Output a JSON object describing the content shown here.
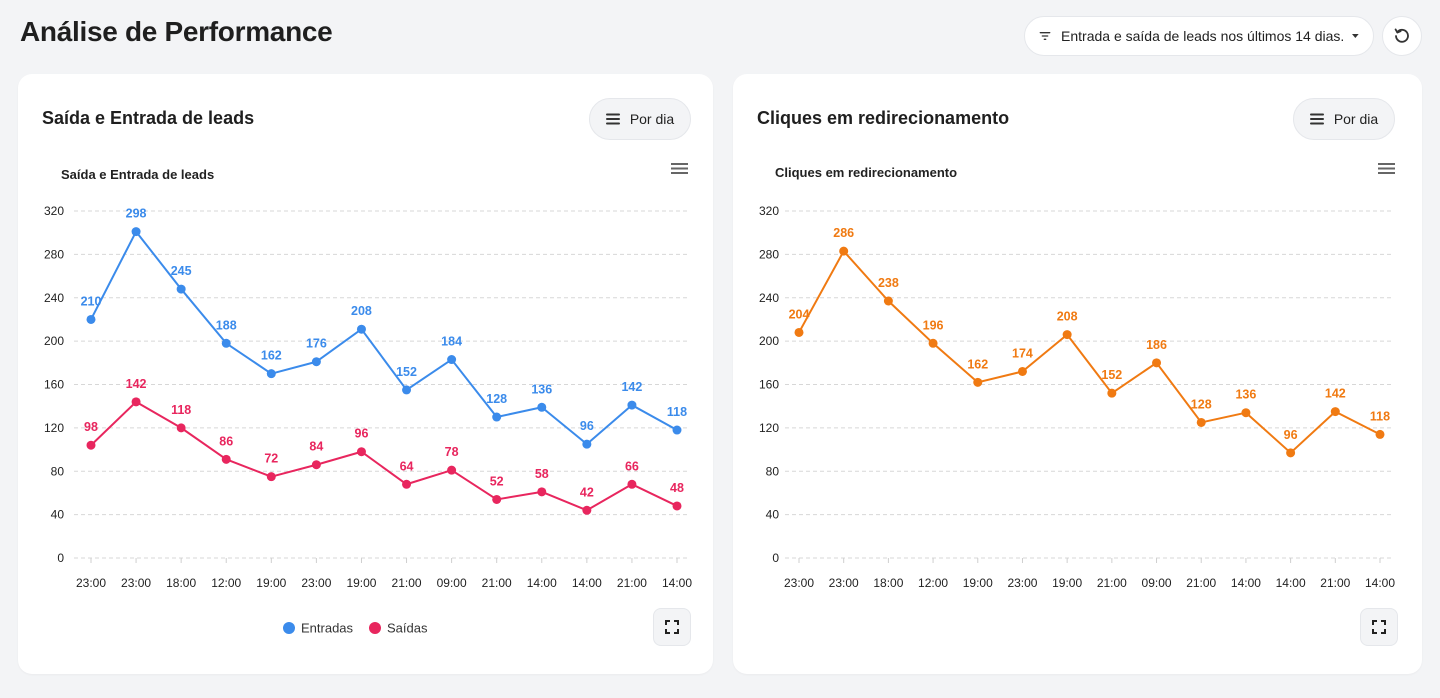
{
  "header": {
    "title": "Análise de Performance",
    "filter_label": "Entrada e saída de leads nos últimos 14 dias."
  },
  "cards": [
    {
      "title": "Saída e Entrada de leads",
      "period_button": "Por dia"
    },
    {
      "title": "Cliques em redirecionamento",
      "period_button": "Por dia"
    }
  ],
  "chart_data": [
    {
      "type": "line",
      "title": "Saída e Entrada de leads",
      "xlabel": "",
      "ylabel": "",
      "ylim": [
        0,
        320
      ],
      "yticks": [
        0,
        40,
        80,
        120,
        160,
        200,
        240,
        280,
        320
      ],
      "grid": true,
      "legend": "bottom",
      "categories": [
        "23:00",
        "23:00",
        "18:00",
        "12:00",
        "19:00",
        "23:00",
        "19:00",
        "21:00",
        "09:00",
        "21:00",
        "14:00",
        "14:00",
        "21:00",
        "14:00"
      ],
      "series": [
        {
          "name": "Entradas",
          "color": "#3b8beb",
          "values": [
            210,
            298,
            245,
            188,
            162,
            176,
            208,
            152,
            184,
            128,
            136,
            96,
            142,
            118
          ],
          "plotted": [
            220,
            301,
            248,
            198,
            170,
            181,
            211,
            155,
            183,
            130,
            139,
            105,
            141,
            118
          ]
        },
        {
          "name": "Saídas",
          "color": "#e8265e",
          "values": [
            98,
            142,
            118,
            86,
            72,
            84,
            96,
            64,
            78,
            52,
            58,
            42,
            66,
            48
          ],
          "plotted": [
            104,
            144,
            120,
            91,
            75,
            86,
            98,
            68,
            81,
            54,
            61,
            44,
            68,
            48
          ]
        }
      ]
    },
    {
      "type": "line",
      "title": "Cliques em redirecionamento",
      "xlabel": "",
      "ylabel": "",
      "ylim": [
        0,
        320
      ],
      "yticks": [
        0,
        40,
        80,
        120,
        160,
        200,
        240,
        280,
        320
      ],
      "grid": true,
      "categories": [
        "23:00",
        "23:00",
        "18:00",
        "12:00",
        "19:00",
        "23:00",
        "19:00",
        "21:00",
        "09:00",
        "21:00",
        "14:00",
        "14:00",
        "21:00",
        "14:00"
      ],
      "series": [
        {
          "color": "#f07a12",
          "values": [
            204,
            286,
            238,
            196,
            162,
            174,
            208,
            152,
            186,
            128,
            136,
            96,
            142,
            118
          ],
          "plotted": [
            208,
            283,
            237,
            198,
            162,
            172,
            206,
            152,
            180,
            125,
            134,
            97,
            135,
            114
          ]
        }
      ]
    }
  ]
}
